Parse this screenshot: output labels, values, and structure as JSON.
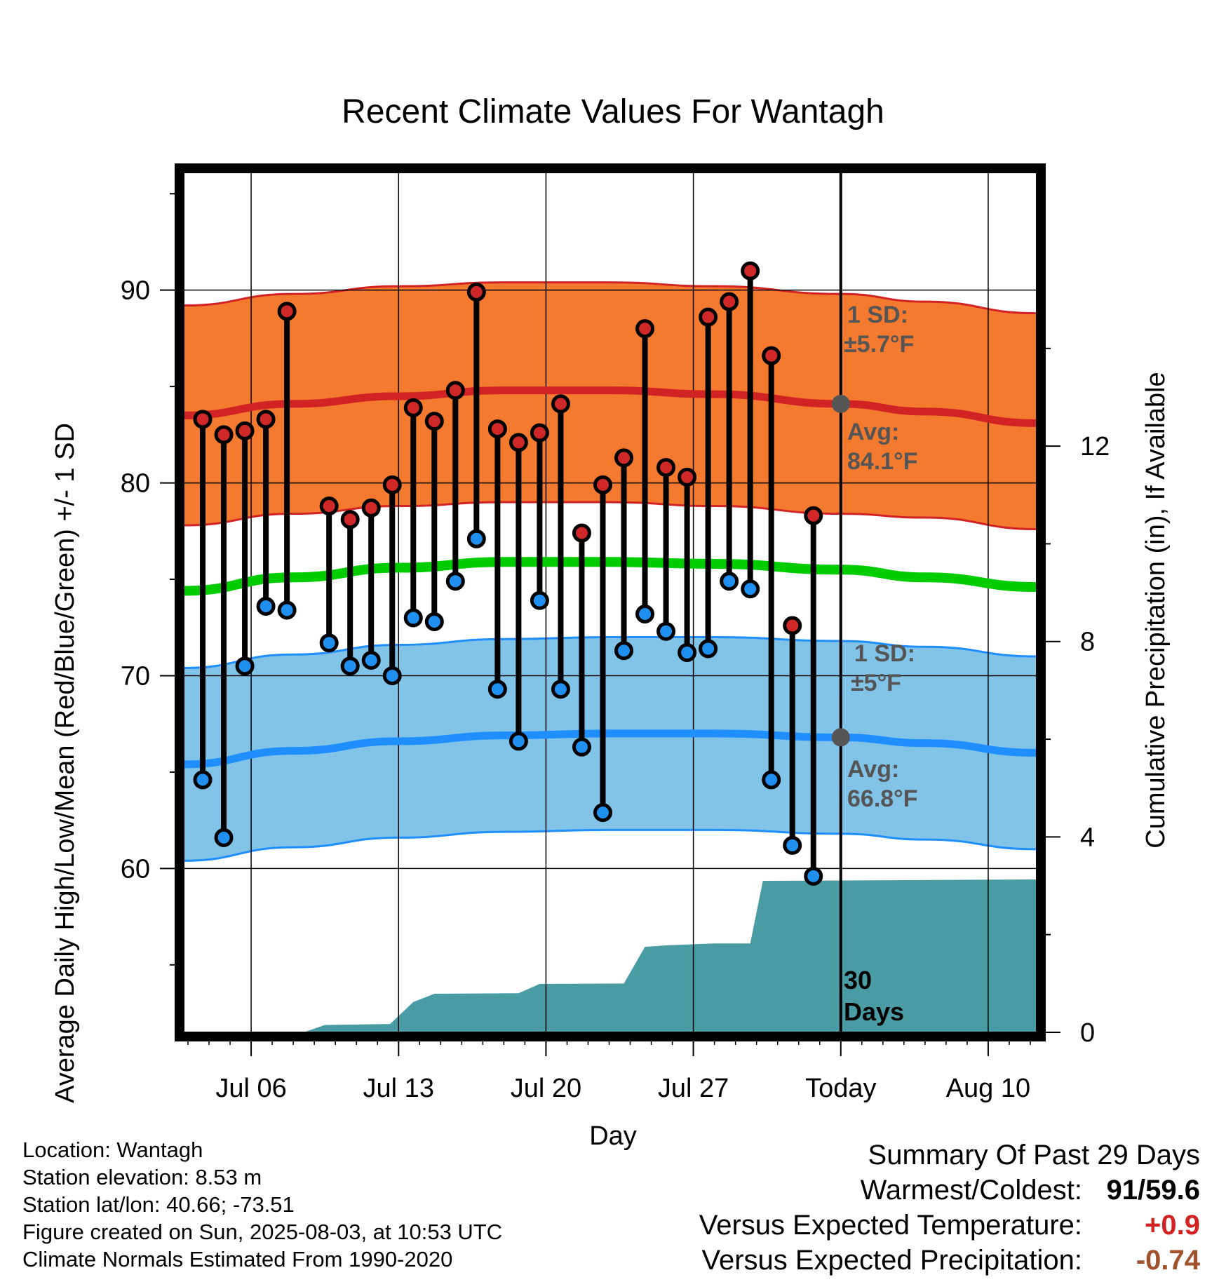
{
  "chart_data": {
    "type": "line",
    "title": "Recent Climate Values For Wantagh",
    "xlabel": "Day",
    "ylabel": "Average Daily High/Low/Mean (Red/Blue/Green) +/- 1 SD",
    "y2label": "Cumulative Precipitation (in), If Available",
    "x_tick_labels": [
      {
        "label": "Jul 06",
        "day": 3
      },
      {
        "label": "Jul 13",
        "day": 10
      },
      {
        "label": "Jul 20",
        "day": 17
      },
      {
        "label": "Jul 27",
        "day": 24
      },
      {
        "label": "Today",
        "day": 31
      },
      {
        "label": "Aug 10",
        "day": 38
      }
    ],
    "today_day": 31,
    "xlim": [
      -0.2,
      40.3
    ],
    "ylim": [
      51.5,
      96.1
    ],
    "yticks": [
      60,
      70,
      80,
      90
    ],
    "y2lim": [
      0,
      17.6
    ],
    "y2ticks": [
      0,
      4,
      8,
      12
    ],
    "normals": {
      "days": [
        -0.2,
        5,
        10,
        15,
        20,
        25,
        31,
        35,
        40.3
      ],
      "high_avg": [
        83.5,
        84.1,
        84.5,
        84.8,
        84.8,
        84.6,
        84.1,
        83.7,
        83.1
      ],
      "high_upper": [
        89.2,
        89.8,
        90.2,
        90.4,
        90.4,
        90.2,
        89.8,
        89.4,
        88.8
      ],
      "high_lower": [
        77.8,
        78.4,
        78.8,
        79.0,
        79.0,
        78.8,
        78.4,
        78.2,
        77.6
      ],
      "mean_avg": [
        74.4,
        75.1,
        75.6,
        75.9,
        75.9,
        75.8,
        75.5,
        75.1,
        74.6
      ],
      "low_avg": [
        65.4,
        66.1,
        66.6,
        66.9,
        67.0,
        67.0,
        66.8,
        66.5,
        66.0
      ],
      "low_upper": [
        70.4,
        71.1,
        71.6,
        71.9,
        72.0,
        72.0,
        71.8,
        71.5,
        71.0
      ],
      "low_lower": [
        60.4,
        61.1,
        61.6,
        61.9,
        62.0,
        62.0,
        61.8,
        61.5,
        61.0
      ]
    },
    "daily": {
      "days": [
        0.7,
        1.7,
        2.7,
        3.7,
        4.7,
        6.7,
        7.7,
        8.7,
        9.7,
        10.7,
        11.7,
        12.7,
        13.7,
        14.7,
        15.7,
        16.7,
        17.7,
        18.7,
        19.7,
        20.7,
        21.7,
        22.7,
        23.7,
        24.7,
        25.7,
        26.7,
        27.7,
        28.7,
        29.7
      ],
      "high": [
        83.3,
        82.5,
        82.7,
        83.3,
        88.9,
        78.8,
        78.1,
        78.7,
        79.9,
        83.9,
        83.2,
        84.8,
        89.9,
        82.8,
        82.1,
        82.6,
        84.1,
        77.4,
        79.9,
        81.3,
        88.0,
        80.8,
        80.3,
        88.6,
        89.4,
        91.0,
        86.6,
        72.6,
        78.3
      ],
      "low": [
        64.6,
        61.6,
        70.5,
        73.6,
        73.4,
        71.7,
        70.5,
        70.8,
        70.0,
        73.0,
        72.8,
        74.9,
        77.1,
        69.3,
        66.6,
        73.9,
        69.3,
        66.3,
        62.9,
        71.3,
        73.2,
        72.3,
        71.2,
        71.4,
        74.9,
        74.5,
        64.6,
        61.2,
        59.6
      ]
    },
    "precip": {
      "days": [
        -0.2,
        5.5,
        6.5,
        9.5,
        10.0,
        11.0,
        15.0,
        16.0,
        19.0,
        20.0,
        26.0,
        27.0,
        40.3
      ],
      "values": [
        0.0,
        0.0,
        0.17,
        0.17,
        0.26,
        0.26,
        0.26,
        0.26,
        0.26,
        0.26,
        1.21,
        2.87,
        2.87
      ],
      "steps": [
        [
          -0.2,
          0.0
        ],
        [
          5.5,
          0.0
        ],
        [
          6.5,
          0.15
        ],
        [
          9.6,
          0.17
        ],
        [
          10.7,
          0.62
        ],
        [
          11.7,
          0.79
        ],
        [
          15.7,
          0.8
        ],
        [
          16.7,
          0.99
        ],
        [
          20.7,
          1.0
        ],
        [
          21.7,
          1.75
        ],
        [
          22.7,
          1.78
        ],
        [
          25.0,
          1.82
        ],
        [
          26.7,
          1.82
        ],
        [
          27.3,
          3.1
        ],
        [
          40.3,
          3.13
        ]
      ]
    },
    "annotations": {
      "high_sd": "1 SD:",
      "high_sd_value": "±5.7°F",
      "high_avg_label": "Avg:",
      "high_avg_value": "84.1°F",
      "low_sd": "1 SD:",
      "low_sd_value": "±5°F",
      "low_avg_label": "Avg:",
      "low_avg_value": "66.8°F",
      "precip_days_num": "30",
      "precip_days_word": "Days"
    },
    "colors": {
      "high_band": "#f47a2f",
      "high_line": "#d22324",
      "low_band": "#82c3e8",
      "low_line": "#1f8fff",
      "mean_line": "#00cc00",
      "precip": "#4a9ca4",
      "high_dot": "#d02828",
      "low_dot": "#1f90f0",
      "annotation": "#555555"
    }
  },
  "info": {
    "location": "Location: Wantagh",
    "elevation": "Station elevation: 8.53 m",
    "latlon": "Station lat/lon: 40.66; -73.51",
    "created": "Figure created on Sun, 2025-08-03, at 10:53 UTC",
    "normals": "Climate Normals Estimated From 1990-2020"
  },
  "summary": {
    "title": "Summary Of Past 29 Days",
    "warm_cold_label": "Warmest/Coldest:",
    "warm_cold_value": "91/59.6",
    "temp_label": "Versus Expected Temperature:",
    "temp_value": "+0.9",
    "temp_color": "#d22324",
    "precip_label": "Versus Expected Precipitation:",
    "precip_value": "-0.74",
    "precip_color": "#a0522d"
  }
}
